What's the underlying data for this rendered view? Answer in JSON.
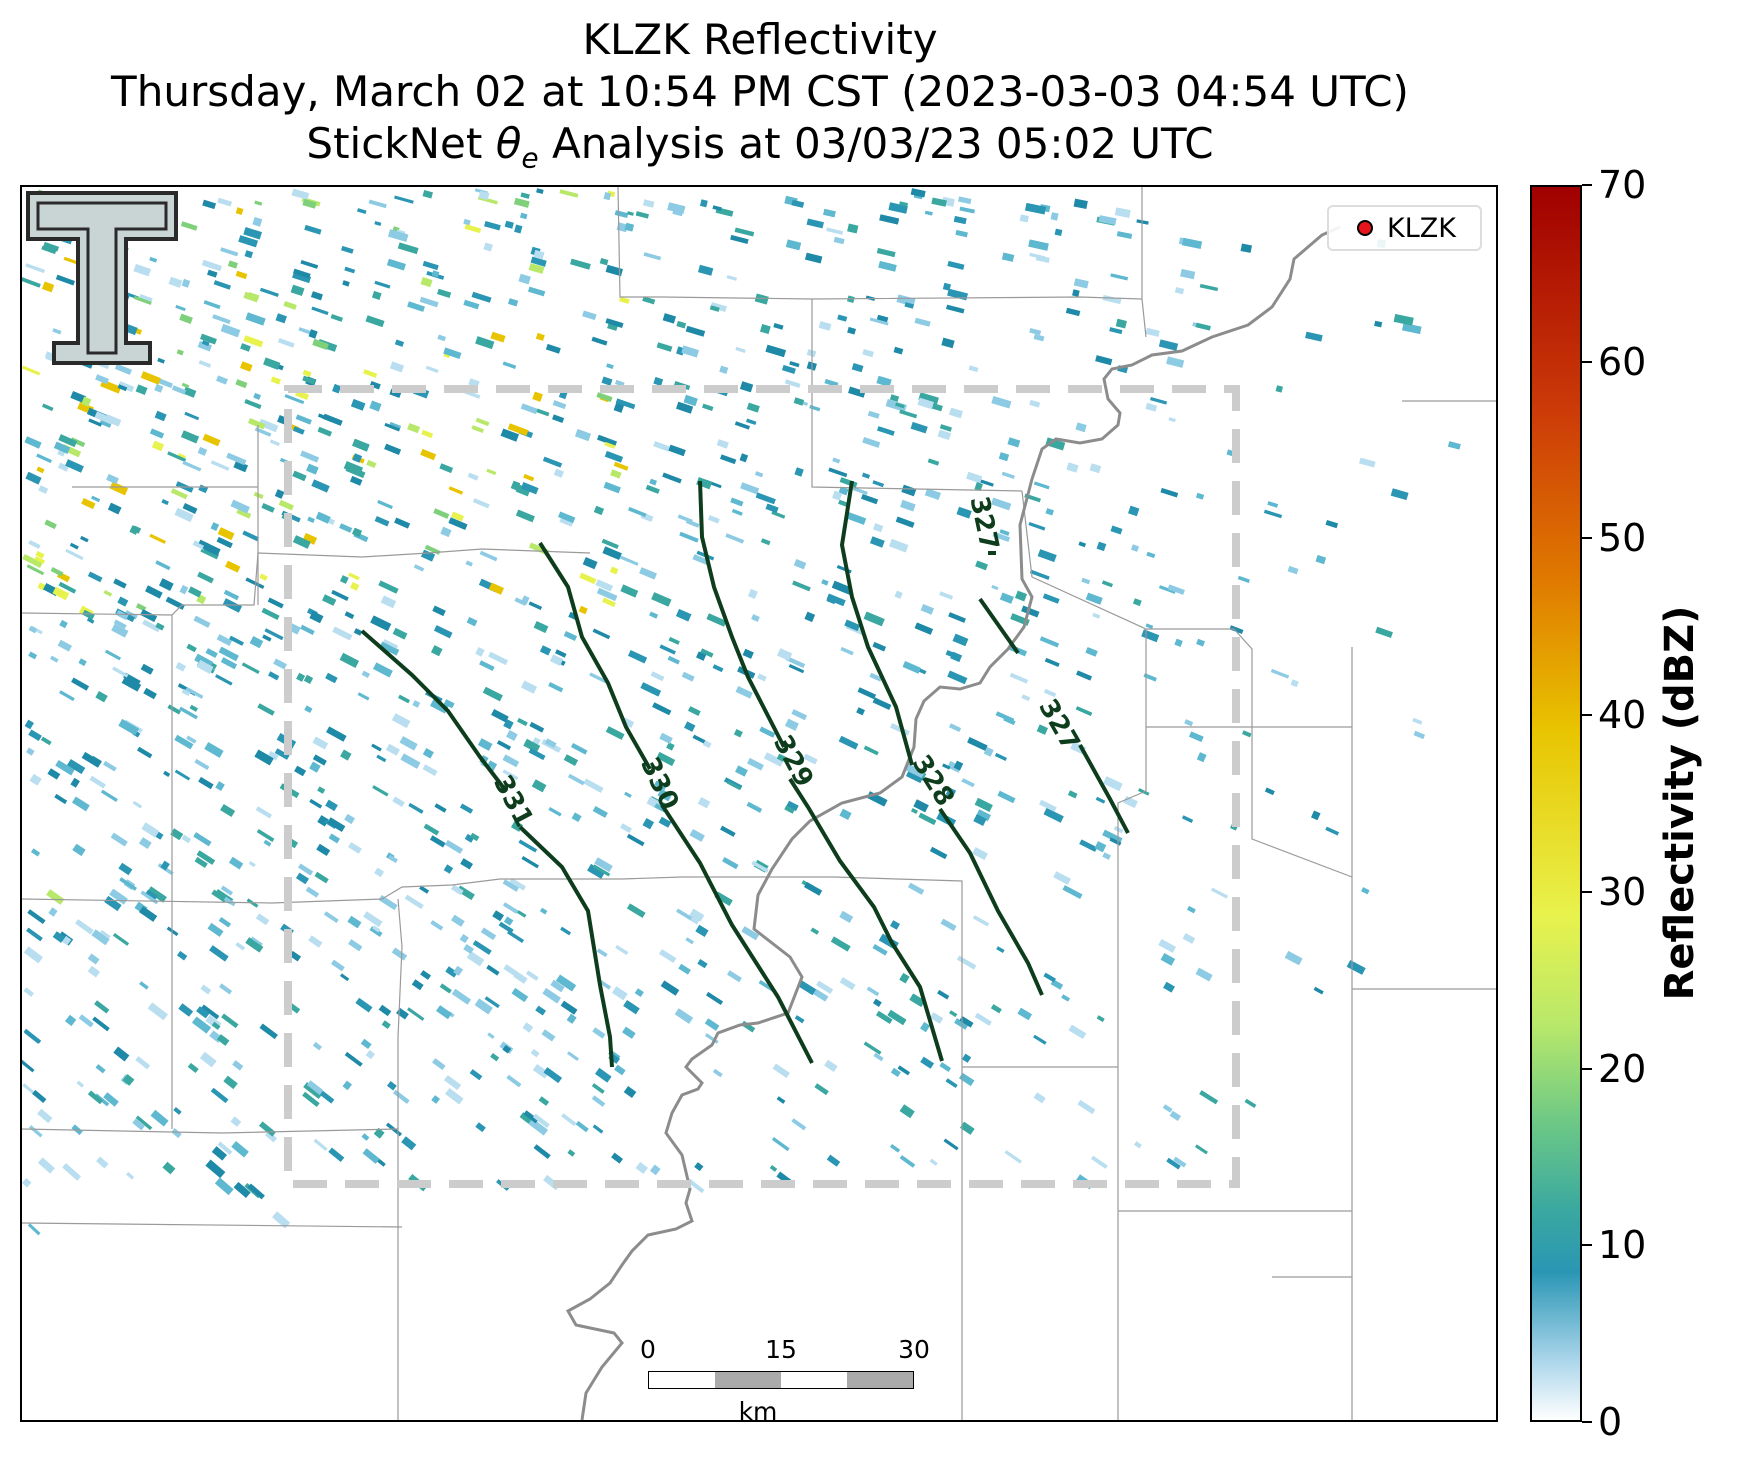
{
  "title": {
    "line1": "KLZK Reflectivity",
    "line2": "Thursday, March 02 at 10:54 PM CST (2023-03-03 04:54 UTC)",
    "line3_prefix": "StickNet ",
    "line3_theta": "θ",
    "line3_sub": "e",
    "line3_suffix": " Analysis at 03/03/23 05:02 UTC"
  },
  "legend": {
    "label": "KLZK",
    "marker_color": "#e8141b"
  },
  "scalebar": {
    "ticks": [
      "0",
      "15",
      "30"
    ],
    "unit": "km"
  },
  "colorbar": {
    "label": "Reflectivity (dBZ)",
    "ticks": [
      "0",
      "10",
      "20",
      "30",
      "40",
      "50",
      "60",
      "70"
    ],
    "range": [
      0,
      70
    ]
  },
  "contours": {
    "color": "#0d3d1c",
    "labels": [
      "331",
      "330",
      "329",
      "328",
      "327",
      "327"
    ]
  },
  "colors": {
    "analysis_box": "#cccccc",
    "river": "#8c8c8c",
    "county_lines": "#9a9a9a",
    "logo_fill": "#c9d4d4"
  }
}
